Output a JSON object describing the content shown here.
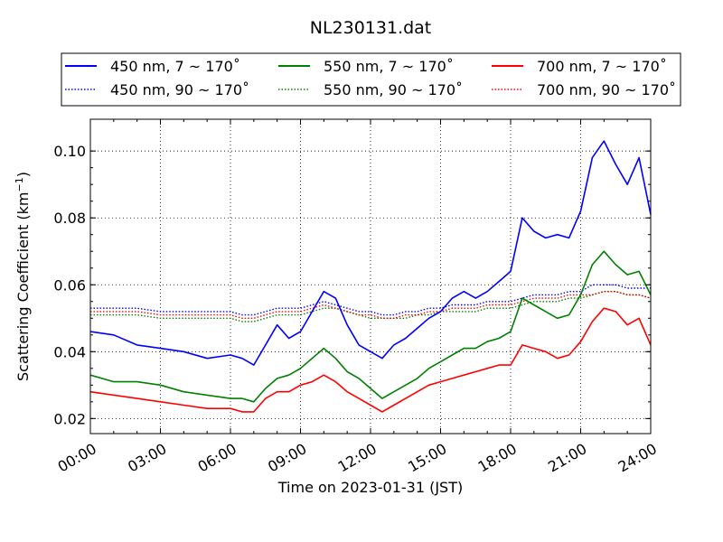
{
  "chart_data": {
    "type": "line",
    "title": "NL230131.dat",
    "xlabel": "Time on 2023-01-31 (JST)",
    "ylabel_main": "Scattering Coefficient (km",
    "ylabel_sup": "−1",
    "ylabel_close": ")",
    "xlim": [
      0,
      24
    ],
    "ylim": [
      0.0155,
      0.1095
    ],
    "x_ticks": [
      0,
      3,
      6,
      9,
      12,
      15,
      18,
      21,
      24
    ],
    "x_tick_labels": [
      "00:00",
      "03:00",
      "06:00",
      "09:00",
      "12:00",
      "15:00",
      "18:00",
      "21:00",
      "24:00"
    ],
    "y_ticks": [
      0.02,
      0.04,
      0.06,
      0.08,
      0.1
    ],
    "y_tick_labels": [
      "0.02",
      "0.04",
      "0.06",
      "0.08",
      "0.10"
    ],
    "grid": true,
    "legend_placement": "top, above plot, 3 columns",
    "x": [
      0,
      1,
      2,
      3,
      4,
      5,
      6,
      6.5,
      7,
      7.5,
      8,
      8.5,
      9,
      9.5,
      10,
      10.5,
      11,
      11.5,
      12,
      12.5,
      13,
      13.5,
      14,
      14.5,
      15,
      15.5,
      16,
      16.5,
      17,
      17.5,
      18,
      18.5,
      19,
      19.5,
      20,
      20.5,
      21,
      21.5,
      22,
      22.5,
      23,
      23.5,
      24
    ],
    "series": [
      {
        "name": "450 nm, 7 ~ 170˚",
        "color": "#0000ff",
        "style": "solid",
        "values": [
          0.046,
          0.045,
          0.042,
          0.041,
          0.04,
          0.038,
          0.039,
          0.038,
          0.036,
          0.042,
          0.048,
          0.044,
          0.046,
          0.052,
          0.058,
          0.056,
          0.048,
          0.042,
          0.04,
          0.038,
          0.042,
          0.044,
          0.047,
          0.05,
          0.052,
          0.056,
          0.058,
          0.056,
          0.058,
          0.061,
          0.064,
          0.08,
          0.076,
          0.074,
          0.075,
          0.074,
          0.082,
          0.098,
          0.103,
          0.096,
          0.09,
          0.098,
          0.081
        ]
      },
      {
        "name": "450 nm, 90 ~ 170˚",
        "color": "#0000ff",
        "style": "dotted",
        "values": [
          0.053,
          0.053,
          0.053,
          0.052,
          0.052,
          0.052,
          0.052,
          0.051,
          0.051,
          0.052,
          0.053,
          0.053,
          0.053,
          0.054,
          0.055,
          0.054,
          0.053,
          0.052,
          0.052,
          0.051,
          0.051,
          0.052,
          0.052,
          0.053,
          0.053,
          0.054,
          0.054,
          0.054,
          0.055,
          0.055,
          0.055,
          0.056,
          0.057,
          0.057,
          0.057,
          0.058,
          0.058,
          0.06,
          0.06,
          0.06,
          0.059,
          0.059,
          0.059
        ]
      },
      {
        "name": "550 nm, 7 ~ 170˚",
        "color": "#008000",
        "style": "solid",
        "values": [
          0.033,
          0.031,
          0.031,
          0.03,
          0.028,
          0.027,
          0.026,
          0.026,
          0.025,
          0.029,
          0.032,
          0.033,
          0.035,
          0.038,
          0.041,
          0.038,
          0.034,
          0.032,
          0.029,
          0.026,
          0.028,
          0.03,
          0.032,
          0.035,
          0.037,
          0.039,
          0.041,
          0.041,
          0.043,
          0.044,
          0.046,
          0.056,
          0.054,
          0.052,
          0.05,
          0.051,
          0.057,
          0.066,
          0.07,
          0.066,
          0.063,
          0.064,
          0.057
        ]
      },
      {
        "name": "550 nm, 90 ~ 170˚",
        "color": "#008000",
        "style": "dotted",
        "values": [
          0.051,
          0.051,
          0.051,
          0.05,
          0.05,
          0.05,
          0.05,
          0.049,
          0.049,
          0.05,
          0.051,
          0.051,
          0.051,
          0.052,
          0.053,
          0.053,
          0.052,
          0.051,
          0.05,
          0.05,
          0.05,
          0.05,
          0.051,
          0.051,
          0.052,
          0.052,
          0.052,
          0.052,
          0.053,
          0.053,
          0.053,
          0.054,
          0.055,
          0.055,
          0.055,
          0.056,
          0.056,
          0.057,
          0.058,
          0.058,
          0.057,
          0.057,
          0.056
        ]
      },
      {
        "name": "700 nm, 7 ~ 170˚",
        "color": "#ff0000",
        "style": "solid",
        "values": [
          0.028,
          0.027,
          0.026,
          0.025,
          0.024,
          0.023,
          0.023,
          0.022,
          0.022,
          0.026,
          0.028,
          0.028,
          0.03,
          0.031,
          0.033,
          0.031,
          0.028,
          0.026,
          0.024,
          0.022,
          0.024,
          0.026,
          0.028,
          0.03,
          0.031,
          0.032,
          0.033,
          0.034,
          0.035,
          0.036,
          0.036,
          0.042,
          0.041,
          0.04,
          0.038,
          0.039,
          0.043,
          0.049,
          0.053,
          0.052,
          0.048,
          0.05,
          0.042
        ]
      },
      {
        "name": "700 nm, 90 ~ 170˚",
        "color": "#ff0000",
        "style": "dotted",
        "values": [
          0.052,
          0.052,
          0.052,
          0.051,
          0.051,
          0.051,
          0.051,
          0.05,
          0.05,
          0.051,
          0.052,
          0.052,
          0.052,
          0.053,
          0.054,
          0.053,
          0.052,
          0.051,
          0.051,
          0.05,
          0.05,
          0.051,
          0.051,
          0.052,
          0.052,
          0.053,
          0.053,
          0.053,
          0.054,
          0.054,
          0.054,
          0.055,
          0.056,
          0.056,
          0.056,
          0.057,
          0.057,
          0.057,
          0.058,
          0.058,
          0.057,
          0.057,
          0.056
        ]
      }
    ]
  }
}
